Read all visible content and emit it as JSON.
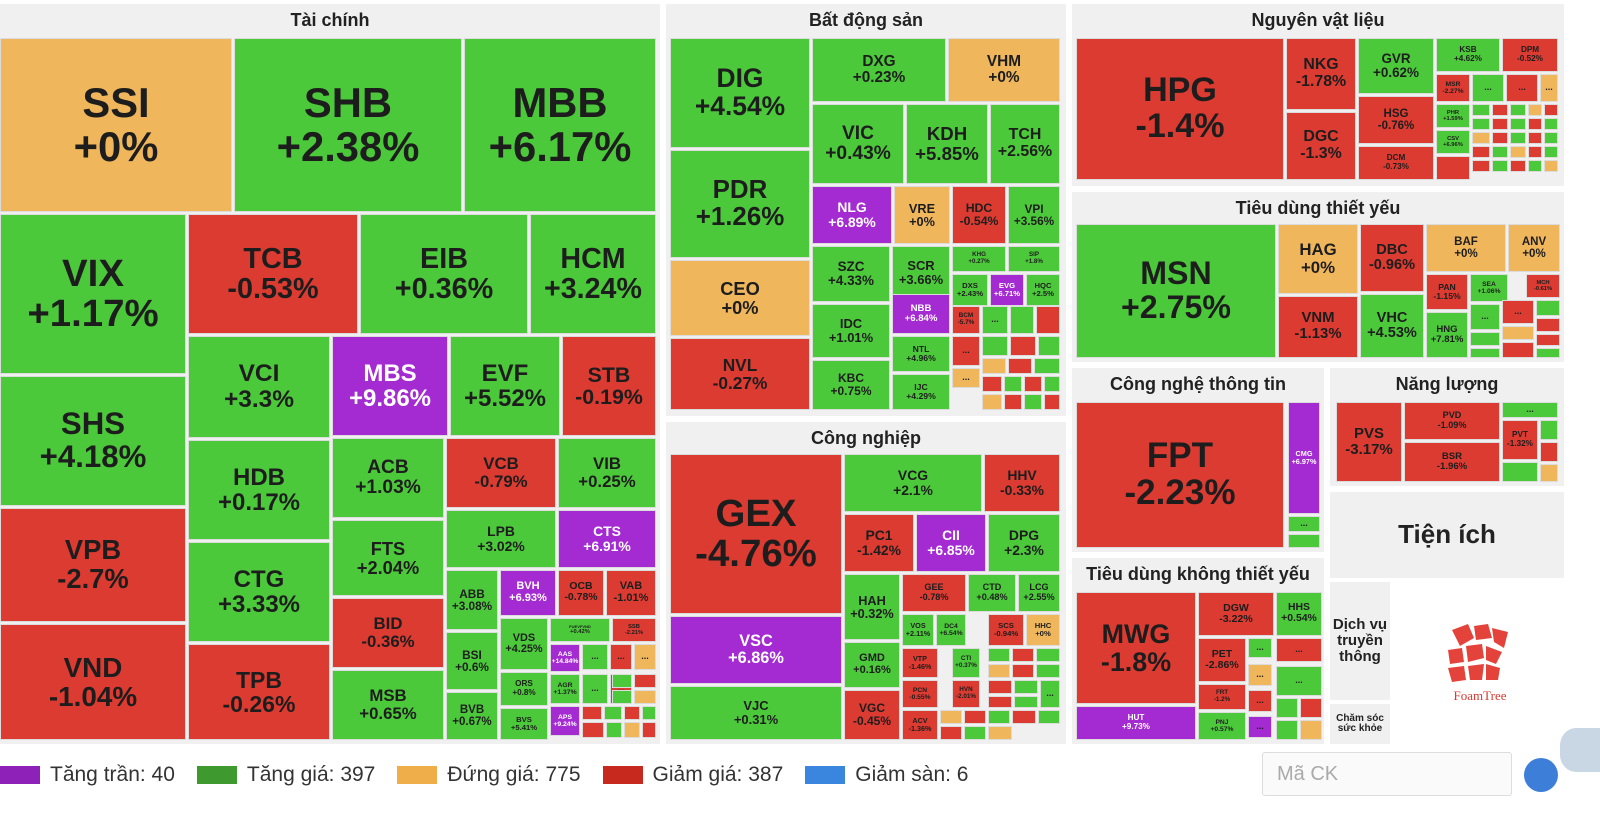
{
  "colors": {
    "ceil": "#a42bd2",
    "up": "#4cc93b",
    "flat": "#efb65c",
    "down": "#dc3b32",
    "floor": "#3c87de"
  },
  "sectors": {
    "tai_chinh": {
      "title": "Tài chính",
      "tiles": [
        {
          "symbol": "SSI",
          "change": "+0%",
          "status": "flat"
        },
        {
          "symbol": "SHB",
          "change": "+2.38%",
          "status": "up"
        },
        {
          "symbol": "MBB",
          "change": "+6.17%",
          "status": "up"
        },
        {
          "symbol": "VIX",
          "change": "+1.17%",
          "status": "up"
        },
        {
          "symbol": "TCB",
          "change": "-0.53%",
          "status": "down"
        },
        {
          "symbol": "EIB",
          "change": "+0.36%",
          "status": "up"
        },
        {
          "symbol": "HCM",
          "change": "+3.24%",
          "status": "up"
        },
        {
          "symbol": "SHS",
          "change": "+4.18%",
          "status": "up"
        },
        {
          "symbol": "VCI",
          "change": "+3.3%",
          "status": "up"
        },
        {
          "symbol": "MBS",
          "change": "+9.86%",
          "status": "ceil"
        },
        {
          "symbol": "EVF",
          "change": "+5.52%",
          "status": "up"
        },
        {
          "symbol": "STB",
          "change": "-0.19%",
          "status": "down"
        },
        {
          "symbol": "HDB",
          "change": "+0.17%",
          "status": "up"
        },
        {
          "symbol": "ACB",
          "change": "+1.03%",
          "status": "up"
        },
        {
          "symbol": "VCB",
          "change": "-0.79%",
          "status": "down"
        },
        {
          "symbol": "VIB",
          "change": "+0.25%",
          "status": "up"
        },
        {
          "symbol": "VPB",
          "change": "-2.7%",
          "status": "down"
        },
        {
          "symbol": "CTG",
          "change": "+3.33%",
          "status": "up"
        },
        {
          "symbol": "FTS",
          "change": "+2.04%",
          "status": "up"
        },
        {
          "symbol": "LPB",
          "change": "+3.02%",
          "status": "up"
        },
        {
          "symbol": "CTS",
          "change": "+6.91%",
          "status": "ceil"
        },
        {
          "symbol": "ABB",
          "change": "+3.08%",
          "status": "up"
        },
        {
          "symbol": "BVH",
          "change": "+6.93%",
          "status": "ceil"
        },
        {
          "symbol": "OCB",
          "change": "-0.78%",
          "status": "down"
        },
        {
          "symbol": "VAB",
          "change": "-1.01%",
          "status": "down"
        },
        {
          "symbol": "BID",
          "change": "-0.36%",
          "status": "down"
        },
        {
          "symbol": "VDS",
          "change": "+4.25%",
          "status": "up"
        },
        {
          "symbol": "FUEVFVND",
          "change": "+0.42%",
          "status": "up"
        },
        {
          "symbol": "SSB",
          "change": "-2.21%",
          "status": "down"
        },
        {
          "symbol": "VND",
          "change": "-1.04%",
          "status": "down"
        },
        {
          "symbol": "TPB",
          "change": "-0.26%",
          "status": "down"
        },
        {
          "symbol": "BSI",
          "change": "+0.6%",
          "status": "up"
        },
        {
          "symbol": "ORS",
          "change": "+0.8%",
          "status": "up"
        },
        {
          "symbol": "AAS",
          "change": "+14.84%",
          "status": "ceil"
        },
        {
          "symbol": "MSB",
          "change": "+0.65%",
          "status": "up"
        },
        {
          "symbol": "AGR",
          "change": "+1.37%",
          "status": "up"
        },
        {
          "symbol": "BVB",
          "change": "+0.67%",
          "status": "up"
        },
        {
          "symbol": "BVS",
          "change": "+5.41%",
          "status": "up"
        },
        {
          "symbol": "APS",
          "change": "+9.24%",
          "status": "ceil"
        }
      ]
    },
    "bat_dong_san": {
      "title": "Bất động sản",
      "tiles": [
        {
          "symbol": "DIG",
          "change": "+4.54%",
          "status": "up"
        },
        {
          "symbol": "DXG",
          "change": "+0.23%",
          "status": "up"
        },
        {
          "symbol": "VHM",
          "change": "+0%",
          "status": "flat"
        },
        {
          "symbol": "VIC",
          "change": "+0.43%",
          "status": "up"
        },
        {
          "symbol": "KDH",
          "change": "+5.85%",
          "status": "up"
        },
        {
          "symbol": "TCH",
          "change": "+2.56%",
          "status": "up"
        },
        {
          "symbol": "PDR",
          "change": "+1.26%",
          "status": "up"
        },
        {
          "symbol": "NLG",
          "change": "+6.89%",
          "status": "ceil"
        },
        {
          "symbol": "VRE",
          "change": "+0%",
          "status": "flat"
        },
        {
          "symbol": "HDC",
          "change": "-0.54%",
          "status": "down"
        },
        {
          "symbol": "VPI",
          "change": "+3.56%",
          "status": "up"
        },
        {
          "symbol": "CEO",
          "change": "+0%",
          "status": "flat"
        },
        {
          "symbol": "SZC",
          "change": "+4.33%",
          "status": "up"
        },
        {
          "symbol": "SCR",
          "change": "+3.66%",
          "status": "up"
        },
        {
          "symbol": "KHG",
          "change": "+0.27%",
          "status": "up"
        },
        {
          "symbol": "SIP",
          "change": "+1.8%",
          "status": "up"
        },
        {
          "symbol": "DXS",
          "change": "+2.43%",
          "status": "up"
        },
        {
          "symbol": "EVG",
          "change": "+6.71%",
          "status": "ceil"
        },
        {
          "symbol": "HQC",
          "change": "+2.5%",
          "status": "up"
        },
        {
          "symbol": "IDC",
          "change": "+1.01%",
          "status": "up"
        },
        {
          "symbol": "NBB",
          "change": "+6.84%",
          "status": "ceil"
        },
        {
          "symbol": "BCM",
          "change": "-5.7%",
          "status": "down"
        },
        {
          "symbol": "NVL",
          "change": "-0.27%",
          "status": "down"
        },
        {
          "symbol": "NTL",
          "change": "+4.96%",
          "status": "up"
        },
        {
          "symbol": "KBC",
          "change": "+0.75%",
          "status": "up"
        },
        {
          "symbol": "IJC",
          "change": "+4.29%",
          "status": "up"
        }
      ]
    },
    "cong_nghiep": {
      "title": "Công nghiệp",
      "tiles": [
        {
          "symbol": "GEX",
          "change": "-4.76%",
          "status": "down"
        },
        {
          "symbol": "VCG",
          "change": "+2.1%",
          "status": "up"
        },
        {
          "symbol": "HHV",
          "change": "-0.33%",
          "status": "down"
        },
        {
          "symbol": "PC1",
          "change": "-1.42%",
          "status": "down"
        },
        {
          "symbol": "CII",
          "change": "+6.85%",
          "status": "ceil"
        },
        {
          "symbol": "DPG",
          "change": "+2.3%",
          "status": "up"
        },
        {
          "symbol": "HAH",
          "change": "+0.32%",
          "status": "up"
        },
        {
          "symbol": "GEE",
          "change": "-0.78%",
          "status": "down"
        },
        {
          "symbol": "CTD",
          "change": "+0.48%",
          "status": "up"
        },
        {
          "symbol": "LCG",
          "change": "+2.55%",
          "status": "up"
        },
        {
          "symbol": "VSC",
          "change": "+6.86%",
          "status": "ceil"
        },
        {
          "symbol": "VOS",
          "change": "+2.11%",
          "status": "up"
        },
        {
          "symbol": "DC4",
          "change": "+6.54%",
          "status": "up"
        },
        {
          "symbol": "SCS",
          "change": "-0.94%",
          "status": "down"
        },
        {
          "symbol": "HHC",
          "change": "+0%",
          "status": "flat"
        },
        {
          "symbol": "GMD",
          "change": "+0.16%",
          "status": "up"
        },
        {
          "symbol": "VTP",
          "change": "-1.46%",
          "status": "down"
        },
        {
          "symbol": "CTI",
          "change": "+0.37%",
          "status": "up"
        },
        {
          "symbol": "PCN",
          "change": "-0.55%",
          "status": "down"
        },
        {
          "symbol": "HVN",
          "change": "-2.01%",
          "status": "down"
        },
        {
          "symbol": "VJC",
          "change": "+0.31%",
          "status": "up"
        },
        {
          "symbol": "VGC",
          "change": "-0.45%",
          "status": "down"
        },
        {
          "symbol": "ACV",
          "change": "-1.36%",
          "status": "down"
        }
      ]
    },
    "nguyen_vat_lieu": {
      "title": "Nguyên vật liệu",
      "tiles": [
        {
          "symbol": "HPG",
          "change": "-1.4%",
          "status": "down"
        },
        {
          "symbol": "NKG",
          "change": "-1.78%",
          "status": "down"
        },
        {
          "symbol": "GVR",
          "change": "+0.62%",
          "status": "up"
        },
        {
          "symbol": "KSB",
          "change": "+4.62%",
          "status": "up"
        },
        {
          "symbol": "DPM",
          "change": "-0.52%",
          "status": "down"
        },
        {
          "symbol": "HSG",
          "change": "-0.76%",
          "status": "down"
        },
        {
          "symbol": "MSR",
          "change": "-2.27%",
          "status": "down"
        },
        {
          "symbol": "PHR",
          "change": "+1.59%",
          "status": "up"
        },
        {
          "symbol": "DGC",
          "change": "-1.3%",
          "status": "down"
        },
        {
          "symbol": "CSV",
          "change": "+6.96%",
          "status": "up"
        },
        {
          "symbol": "DCM",
          "change": "-0.73%",
          "status": "down"
        }
      ]
    },
    "tieu_dung_thiet_yeu": {
      "title": "Tiêu dùng thiết yếu",
      "tiles": [
        {
          "symbol": "MSN",
          "change": "+2.75%",
          "status": "up"
        },
        {
          "symbol": "HAG",
          "change": "+0%",
          "status": "flat"
        },
        {
          "symbol": "DBC",
          "change": "-0.96%",
          "status": "down"
        },
        {
          "symbol": "BAF",
          "change": "+0%",
          "status": "flat"
        },
        {
          "symbol": "ANV",
          "change": "+0%",
          "status": "flat"
        },
        {
          "symbol": "PAN",
          "change": "-1.15%",
          "status": "down"
        },
        {
          "symbol": "SEA",
          "change": "+1.06%",
          "status": "up"
        },
        {
          "symbol": "MCH",
          "change": "-0.61%",
          "status": "down"
        },
        {
          "symbol": "VNM",
          "change": "-1.13%",
          "status": "down"
        },
        {
          "symbol": "VHC",
          "change": "+4.53%",
          "status": "up"
        },
        {
          "symbol": "HNG",
          "change": "+7.81%",
          "status": "up"
        }
      ]
    },
    "cong_nghe": {
      "title": "Công nghệ thông tin",
      "tiles": [
        {
          "symbol": "FPT",
          "change": "-2.23%",
          "status": "down"
        },
        {
          "symbol": "CMG",
          "change": "+6.97%",
          "status": "ceil"
        }
      ]
    },
    "nang_luong": {
      "title": "Năng lượng",
      "tiles": [
        {
          "symbol": "PVS",
          "change": "-3.17%",
          "status": "down"
        },
        {
          "symbol": "PVD",
          "change": "-1.09%",
          "status": "down"
        },
        {
          "symbol": "PVT",
          "change": "-1.32%",
          "status": "down"
        },
        {
          "symbol": "BSR",
          "change": "-1.96%",
          "status": "down"
        }
      ]
    },
    "tieu_dung_khong": {
      "title": "Tiêu dùng không thiết yếu",
      "tiles": [
        {
          "symbol": "MWG",
          "change": "-1.8%",
          "status": "down"
        },
        {
          "symbol": "DGW",
          "change": "-3.22%",
          "status": "down"
        },
        {
          "symbol": "HHS",
          "change": "+0.54%",
          "status": "up"
        },
        {
          "symbol": "PET",
          "change": "-2.86%",
          "status": "down"
        },
        {
          "symbol": "FRT",
          "change": "-1.2%",
          "status": "down"
        },
        {
          "symbol": "PNJ",
          "change": "+0.57%",
          "status": "up"
        },
        {
          "symbol": "HUT",
          "change": "+9.73%",
          "status": "ceil"
        }
      ]
    },
    "tien_ich": {
      "title": "Tiện ích"
    },
    "dich_vu": {
      "title": "Dịch vụ truyền thông"
    },
    "cham_soc": {
      "title": "Chăm sóc sức khỏe"
    }
  },
  "ellipsis": "...",
  "legend": [
    {
      "label": "Tăng trần: 40",
      "color": "#8e22b8"
    },
    {
      "label": "Tăng giá: 397",
      "color": "#3e9a2f"
    },
    {
      "label": "Đứng giá: 775",
      "color": "#efae4a"
    },
    {
      "label": "Giảm giá: 387",
      "color": "#c8291f"
    },
    {
      "label": "Giảm sàn: 6",
      "color": "#3a86de"
    }
  ],
  "search": {
    "placeholder": "Mã CK"
  },
  "brand": {
    "name": "FoamTree"
  }
}
